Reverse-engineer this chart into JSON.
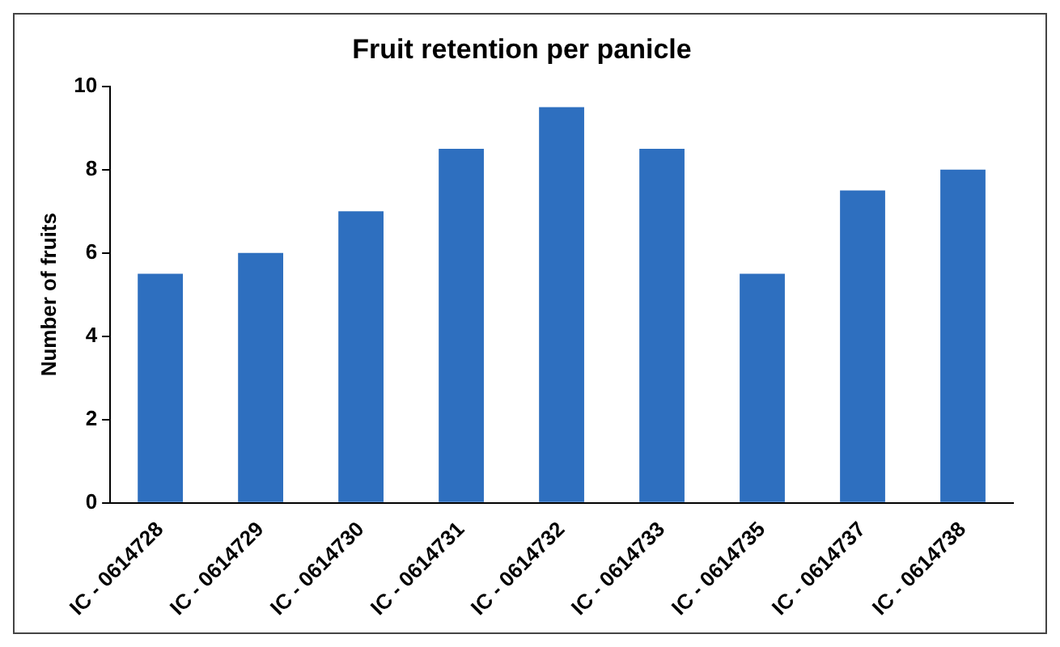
{
  "chart_data": {
    "type": "bar",
    "title": "Fruit retention per panicle",
    "ylabel": "Number of fruits",
    "categories": [
      "IC - 0614728",
      "IC - 0614729",
      "IC - 0614730",
      "IC - 0614731",
      "IC - 0614732",
      "IC - 0614733",
      "IC - 0614735",
      "IC - 0614737",
      "IC - 0614738"
    ],
    "values": [
      5.5,
      6,
      7,
      8.5,
      9.5,
      8.5,
      5.5,
      7.5,
      8
    ],
    "color": "#2e6fbf",
    "ylim": [
      0,
      10
    ],
    "yticks": [
      0,
      2,
      4,
      6,
      8,
      10
    ],
    "grid": false,
    "legend": false
  }
}
